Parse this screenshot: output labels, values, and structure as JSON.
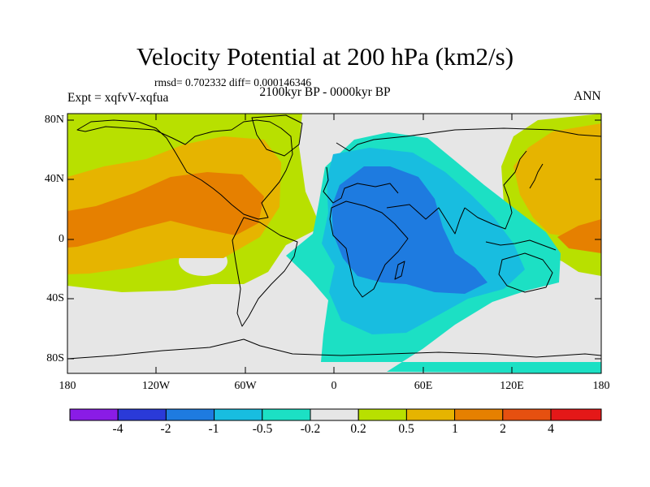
{
  "title": "Velocity Potential at 200 hPa (km2/s)",
  "stats": "rmsd= 0.702332 diff= 0.000146346",
  "period": "2100kyr BP - 0000kyr BP",
  "experiment": "Expt = xqfvV-xqfua",
  "season": "ANN",
  "y_axis_labels": [
    "80N",
    "40N",
    "0",
    "40S",
    "80S"
  ],
  "x_axis_labels": [
    "180",
    "120W",
    "60W",
    "0",
    "60E",
    "120E",
    "180"
  ],
  "colorbar": {
    "labels": [
      "-4",
      "-2",
      "-1",
      "-0.5",
      "-0.2",
      "0.2",
      "0.5",
      "1",
      "2",
      "4"
    ],
    "colors": [
      "#8a1ce6",
      "#2a3ad8",
      "#1e7be0",
      "#18bde0",
      "#1ce0c4",
      "#e6e6e6",
      "#b8e000",
      "#e6b400",
      "#e68000",
      "#e65010",
      "#e41818"
    ]
  },
  "palette": {
    "neutral": "#e6e6e6",
    "pos_weak": "#b8e000",
    "pos_mid": "#e6b400",
    "pos_strong": "#e68000",
    "neg_weak": "#1ce0c4",
    "neg_mid": "#18bde0",
    "neg_strong": "#1e7be0"
  }
}
